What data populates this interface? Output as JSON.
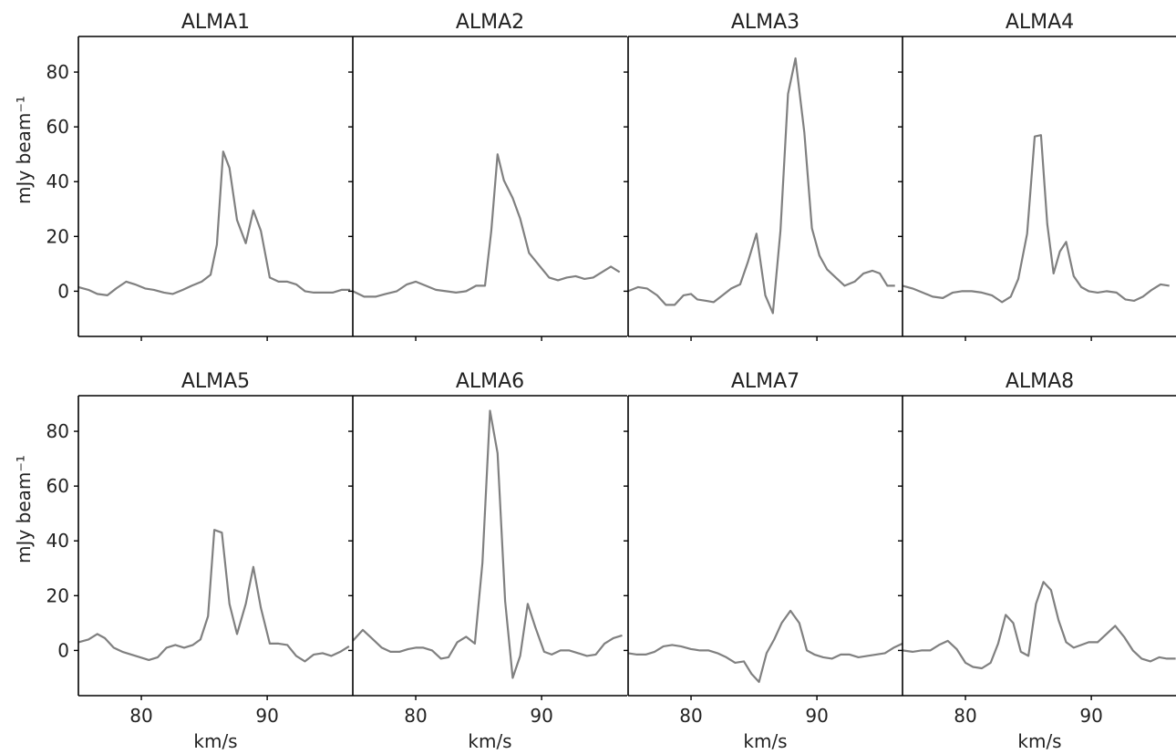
{
  "figure": {
    "xlabel": "km/s",
    "ylabel": "mJy beam⁻¹",
    "xlim": [
      75,
      96.8
    ],
    "ylim": [
      -16.5,
      93
    ],
    "xticks": [
      80,
      90
    ],
    "yticks": [
      0,
      20,
      40,
      60,
      80
    ],
    "line_color": "#808080",
    "axis_color": "#000000"
  },
  "chart_data": [
    {
      "type": "line",
      "title": "ALMA1",
      "x": [
        75.0,
        75.8,
        76.5,
        77.3,
        78.0,
        78.8,
        79.5,
        80.3,
        81.0,
        81.8,
        82.5,
        83.3,
        84.0,
        84.8,
        85.5,
        86.0,
        86.5,
        87.0,
        87.6,
        88.3,
        88.9,
        89.5,
        90.2,
        90.9,
        91.6,
        92.3,
        93.0,
        93.7,
        94.4,
        95.2,
        95.9,
        96.6
      ],
      "y": [
        1.5,
        0.5,
        -1,
        -1.5,
        1,
        3.5,
        2.5,
        1,
        0.5,
        -0.5,
        -1,
        0.5,
        2,
        3.5,
        6,
        17,
        51,
        45,
        26,
        17.5,
        29.5,
        22,
        5,
        3.5,
        3.5,
        2.5,
        0,
        -0.5,
        -0.5,
        -0.5,
        0.5,
        0.5
      ]
    },
    {
      "type": "line",
      "title": "ALMA2",
      "x": [
        75.0,
        75.9,
        76.8,
        77.6,
        78.5,
        79.3,
        80.0,
        80.8,
        81.6,
        82.4,
        83.2,
        84.0,
        84.8,
        85.5,
        86.0,
        86.5,
        87.0,
        87.7,
        88.3,
        89.0,
        89.8,
        90.6,
        91.3,
        92.0,
        92.7,
        93.4,
        94.1,
        94.8,
        95.5,
        96.2
      ],
      "y": [
        0,
        -2,
        -2,
        -1,
        0,
        2.5,
        3.5,
        2,
        0.5,
        0,
        -0.5,
        0,
        2,
        2,
        22,
        50,
        40.5,
        34,
        26.5,
        14,
        9.5,
        5,
        4,
        5,
        5.5,
        4.5,
        5,
        7,
        9,
        7
      ]
    },
    {
      "type": "line",
      "title": "ALMA3",
      "x": [
        75.0,
        75.8,
        76.5,
        77.3,
        78.0,
        78.7,
        79.4,
        80.0,
        80.5,
        81.2,
        81.8,
        82.5,
        83.2,
        83.9,
        84.5,
        85.2,
        85.9,
        86.5,
        87.1,
        87.7,
        88.3,
        89.0,
        89.6,
        90.2,
        90.8,
        91.5,
        92.2,
        93.0,
        93.7,
        94.4,
        95.0,
        95.6,
        96.2
      ],
      "y": [
        0,
        1.5,
        1,
        -1.5,
        -5,
        -5,
        -1.5,
        -1,
        -3,
        -3.5,
        -4,
        -1.5,
        1,
        2.5,
        10.5,
        21,
        -1.5,
        -8,
        22,
        72,
        85,
        58,
        23,
        13,
        8,
        5,
        2,
        3.5,
        6.5,
        7.5,
        6.5,
        2,
        2
      ]
    },
    {
      "type": "line",
      "title": "ALMA4",
      "x": [
        75.0,
        75.8,
        76.6,
        77.4,
        78.2,
        79.0,
        79.7,
        80.5,
        81.3,
        82.1,
        82.9,
        83.6,
        84.2,
        84.9,
        85.5,
        86.0,
        86.5,
        87.0,
        87.5,
        88.0,
        88.6,
        89.2,
        89.8,
        90.5,
        91.2,
        92.0,
        92.7,
        93.4,
        94.1,
        94.8,
        95.5,
        96.2
      ],
      "y": [
        2,
        1,
        -0.5,
        -2,
        -2.5,
        -0.5,
        0,
        0,
        -0.5,
        -1.5,
        -4,
        -2,
        4.5,
        21,
        56.5,
        57,
        24.5,
        6.5,
        14.5,
        18,
        5.5,
        1.5,
        0,
        -0.5,
        0,
        -0.5,
        -3,
        -3.5,
        -2,
        0.5,
        2.5,
        2
      ]
    },
    {
      "type": "line",
      "title": "ALMA5",
      "x": [
        75.0,
        75.8,
        76.5,
        77.1,
        77.8,
        78.5,
        79.2,
        79.9,
        80.6,
        81.3,
        82.0,
        82.7,
        83.4,
        84.1,
        84.7,
        85.3,
        85.8,
        86.4,
        87.0,
        87.6,
        88.3,
        88.9,
        89.5,
        90.2,
        90.9,
        91.6,
        92.3,
        93.0,
        93.7,
        94.4,
        95.1,
        95.8,
        96.5
      ],
      "y": [
        3,
        4,
        6,
        4.5,
        1,
        -0.5,
        -1.5,
        -2.5,
        -3.5,
        -2.5,
        1,
        2,
        1,
        2,
        4,
        12.5,
        44,
        43,
        17,
        6,
        17,
        30.5,
        15.5,
        2.5,
        2.5,
        2,
        -2,
        -4,
        -1.5,
        -1,
        -2,
        -0.5,
        1.5
      ]
    },
    {
      "type": "line",
      "title": "ALMA6",
      "x": [
        75.0,
        75.8,
        76.5,
        77.3,
        78.0,
        78.7,
        79.4,
        80.0,
        80.6,
        81.3,
        82.0,
        82.6,
        83.3,
        84.0,
        84.7,
        85.3,
        85.9,
        86.5,
        87.1,
        87.7,
        88.3,
        88.9,
        89.5,
        90.2,
        90.8,
        91.5,
        92.2,
        92.9,
        93.6,
        94.3,
        95.0,
        95.7,
        96.4
      ],
      "y": [
        3.5,
        7.5,
        4.5,
        1,
        -0.5,
        -0.5,
        0.5,
        1,
        1,
        0,
        -3,
        -2.5,
        3,
        5,
        2.5,
        32,
        87.5,
        72,
        18,
        -10,
        -2,
        17,
        8.5,
        -0.5,
        -1.5,
        0,
        0,
        -1,
        -2,
        -1.5,
        2.5,
        4.5,
        5.5
      ]
    },
    {
      "type": "line",
      "title": "ALMA7",
      "x": [
        75.0,
        75.7,
        76.4,
        77.1,
        77.8,
        78.5,
        79.2,
        80.0,
        80.7,
        81.4,
        82.1,
        82.8,
        83.5,
        84.2,
        84.8,
        85.4,
        86.0,
        86.6,
        87.2,
        87.9,
        88.6,
        89.2,
        89.8,
        90.5,
        91.2,
        91.9,
        92.6,
        93.3,
        94.0,
        94.7,
        95.4,
        96.1,
        96.8
      ],
      "y": [
        -1,
        -1.5,
        -1.5,
        -0.5,
        1.5,
        2,
        1.5,
        0.5,
        0,
        0,
        -1,
        -2.5,
        -4.5,
        -4,
        -8.5,
        -11.5,
        -1,
        4,
        10,
        14.5,
        10,
        0,
        -1.5,
        -2.5,
        -3,
        -1.5,
        -1.5,
        -2.5,
        -2,
        -1.5,
        -1,
        1,
        2.5
      ]
    },
    {
      "type": "line",
      "title": "ALMA8",
      "x": [
        75.0,
        75.8,
        76.5,
        77.2,
        77.9,
        78.6,
        79.3,
        80.0,
        80.6,
        81.3,
        82.0,
        82.6,
        83.2,
        83.8,
        84.4,
        85.0,
        85.6,
        86.2,
        86.8,
        87.4,
        88.0,
        88.6,
        89.2,
        89.8,
        90.5,
        91.2,
        91.9,
        92.6,
        93.3,
        94.0,
        94.7,
        95.4,
        96.0,
        96.7
      ],
      "y": [
        0,
        -0.5,
        0,
        0,
        2,
        3.5,
        0.5,
        -4.5,
        -6,
        -6.5,
        -4.5,
        2.5,
        13,
        10,
        -0.5,
        -2,
        17,
        25,
        22,
        11,
        3,
        1,
        2,
        3,
        3,
        6,
        9,
        5,
        0,
        -3,
        -4,
        -2.5,
        -3,
        -3
      ]
    }
  ]
}
